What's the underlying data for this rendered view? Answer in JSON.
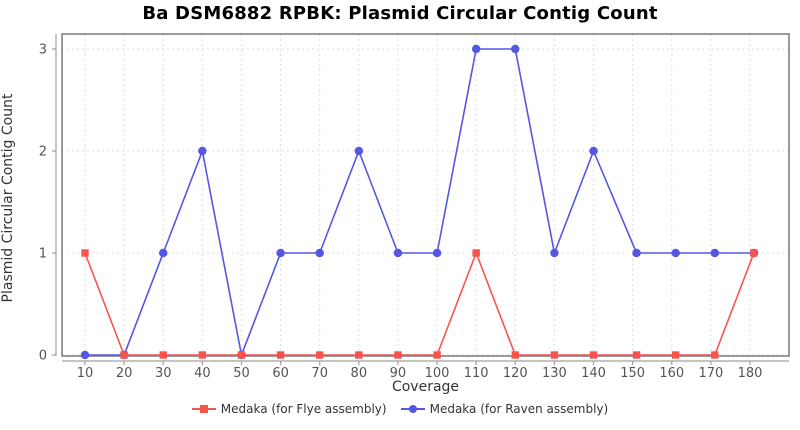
{
  "title": "Ba DSM6882 RPBK: Plasmid Circular Contig Count",
  "chart_data": {
    "type": "line",
    "title": "Ba DSM6882 RPBK: Plasmid Circular Contig Count",
    "xlabel": "Coverage",
    "ylabel": "Plasmid Circular Contig Count",
    "xlim": [
      10,
      180
    ],
    "ylim": [
      0,
      3
    ],
    "x_ticks": [
      10,
      20,
      30,
      40,
      50,
      60,
      70,
      80,
      90,
      100,
      110,
      120,
      130,
      140,
      150,
      160,
      170,
      180
    ],
    "y_ticks": [
      0,
      1,
      2,
      3
    ],
    "grid": "dashed-both",
    "legend_position": "bottom-center",
    "colors": {
      "grid": "#dedede",
      "frame": "#7a7a7a",
      "axis_line": "#a0a0a0",
      "tick_label": "#555555",
      "flye_red": "#f8544e",
      "raven_blue": "#5557e2"
    },
    "series": [
      {
        "name": "Medaka (for Flye assembly)",
        "color": "#f8544e",
        "marker": "square",
        "x": [
          10,
          20,
          30,
          40,
          50,
          60,
          70,
          80,
          90,
          100,
          110,
          120,
          130,
          140,
          151,
          161,
          171,
          181
        ],
        "y": [
          1,
          0,
          0,
          0,
          0,
          0,
          0,
          0,
          0,
          0,
          1,
          0,
          0,
          0,
          0,
          0,
          0,
          1
        ]
      },
      {
        "name": "Medaka (for Raven assembly)",
        "color": "#5557e2",
        "marker": "circle",
        "x": [
          10,
          20,
          30,
          40,
          50,
          60,
          70,
          80,
          90,
          100,
          110,
          120,
          130,
          140,
          151,
          161,
          171,
          181
        ],
        "y": [
          0,
          0,
          1,
          2,
          0,
          1,
          1,
          2,
          1,
          1,
          3,
          3,
          1,
          2,
          1,
          1,
          1,
          1
        ]
      }
    ]
  }
}
